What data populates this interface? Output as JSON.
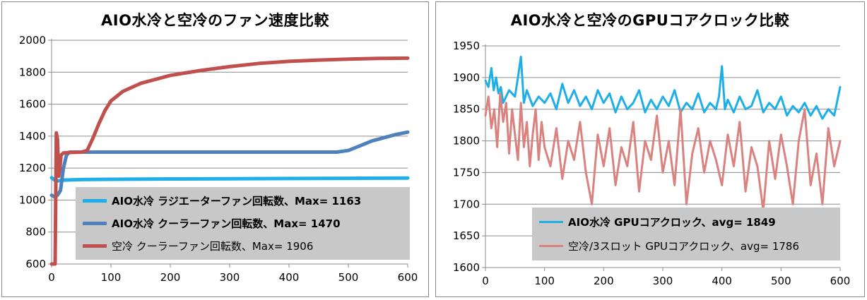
{
  "chart_data": [
    {
      "type": "line",
      "title": "AIO水冷と空冷のファン速度比較",
      "xlabel": "",
      "ylabel": "",
      "xlim": [
        0,
        600
      ],
      "ylim": [
        600,
        2000
      ],
      "x_ticks": [
        "0",
        "100",
        "200",
        "300",
        "400",
        "500",
        "600"
      ],
      "y_ticks": [
        "600",
        "800",
        "1000",
        "1200",
        "1400",
        "1600",
        "1800",
        "2000"
      ],
      "grid": "horizontal",
      "legend_position": "bottom-right",
      "series": [
        {
          "name": "AIO水冷 ラジエーターファン回転数、Max= 1163",
          "color": "#1eaee8",
          "bold": true,
          "x": [
            0,
            5,
            10,
            20,
            50,
            100,
            200,
            300,
            400,
            500,
            600
          ],
          "values": [
            1140,
            1125,
            1120,
            1125,
            1128,
            1130,
            1132,
            1133,
            1135,
            1136,
            1138
          ]
        },
        {
          "name": "AIO水冷 クーラーファン回転数、Max= 1470",
          "color": "#4f81bd",
          "bold": true,
          "x": [
            0,
            5,
            10,
            15,
            20,
            25,
            30,
            60,
            100,
            200,
            300,
            400,
            480,
            500,
            520,
            540,
            560,
            580,
            600
          ],
          "values": [
            1030,
            1020,
            1030,
            1060,
            1200,
            1280,
            1300,
            1300,
            1300,
            1300,
            1300,
            1300,
            1300,
            1310,
            1340,
            1370,
            1390,
            1410,
            1425
          ]
        },
        {
          "name": "空冷 クーラーファン回転数、Max= 1906",
          "color": "#c0504d",
          "bold": false,
          "x": [
            0,
            6,
            8,
            10,
            12,
            14,
            16,
            20,
            30,
            50,
            60,
            70,
            80,
            90,
            100,
            120,
            150,
            200,
            250,
            300,
            350,
            400,
            450,
            500,
            550,
            600
          ],
          "values": [
            600,
            600,
            1420,
            1380,
            1150,
            1200,
            1280,
            1295,
            1298,
            1300,
            1310,
            1390,
            1480,
            1560,
            1620,
            1680,
            1730,
            1780,
            1810,
            1835,
            1855,
            1868,
            1876,
            1882,
            1886,
            1888
          ]
        }
      ]
    },
    {
      "type": "line",
      "title": "AIO水冷と空冷のGPUコアクロック比較",
      "xlabel": "",
      "ylabel": "",
      "xlim": [
        0,
        600
      ],
      "ylim": [
        1600,
        1950
      ],
      "x_ticks": [
        "0",
        "100",
        "200",
        "300",
        "400",
        "500",
        "600"
      ],
      "y_ticks": [
        "1600",
        "1650",
        "1700",
        "1750",
        "1800",
        "1850",
        "1900",
        "1950"
      ],
      "grid": "horizontal",
      "legend_position": "bottom-right",
      "series": [
        {
          "name": "AIO水冷 GPUコアクロック、avg= 1849",
          "color": "#1eaee8",
          "bold": true,
          "x": [
            0,
            5,
            10,
            14,
            18,
            22,
            26,
            30,
            40,
            50,
            55,
            60,
            65,
            70,
            80,
            90,
            100,
            110,
            120,
            130,
            140,
            150,
            160,
            170,
            180,
            190,
            200,
            210,
            220,
            230,
            240,
            250,
            260,
            270,
            280,
            290,
            300,
            310,
            320,
            330,
            340,
            350,
            360,
            370,
            380,
            390,
            395,
            400,
            405,
            410,
            420,
            430,
            440,
            450,
            460,
            470,
            480,
            490,
            500,
            510,
            520,
            530,
            540,
            550,
            560,
            570,
            580,
            590,
            600
          ],
          "values": [
            1895,
            1885,
            1915,
            1880,
            1900,
            1875,
            1885,
            1860,
            1880,
            1870,
            1900,
            1933,
            1860,
            1880,
            1855,
            1870,
            1860,
            1875,
            1850,
            1890,
            1860,
            1880,
            1855,
            1870,
            1850,
            1880,
            1860,
            1875,
            1845,
            1870,
            1850,
            1860,
            1880,
            1845,
            1865,
            1850,
            1870,
            1855,
            1880,
            1845,
            1860,
            1850,
            1875,
            1845,
            1860,
            1850,
            1870,
            1918,
            1850,
            1865,
            1845,
            1870,
            1850,
            1855,
            1880,
            1845,
            1860,
            1850,
            1870,
            1840,
            1855,
            1845,
            1860,
            1840,
            1855,
            1835,
            1850,
            1840,
            1885
          ]
        },
        {
          "name": "空冷/3スロット GPUコアクロック、avg= 1786",
          "color": "#d9827f",
          "bold": false,
          "x": [
            0,
            5,
            10,
            15,
            20,
            25,
            30,
            35,
            40,
            45,
            50,
            55,
            60,
            65,
            70,
            75,
            80,
            85,
            90,
            95,
            100,
            110,
            120,
            130,
            140,
            150,
            160,
            170,
            180,
            190,
            200,
            210,
            220,
            230,
            240,
            250,
            260,
            270,
            280,
            290,
            300,
            310,
            320,
            330,
            340,
            350,
            360,
            370,
            380,
            390,
            400,
            410,
            420,
            430,
            440,
            450,
            460,
            470,
            480,
            490,
            500,
            510,
            520,
            530,
            540,
            550,
            560,
            570,
            580,
            590,
            600
          ],
          "values": [
            1840,
            1870,
            1820,
            1850,
            1790,
            1875,
            1830,
            1860,
            1780,
            1850,
            1810,
            1770,
            1860,
            1790,
            1830,
            1760,
            1810,
            1850,
            1770,
            1830,
            1790,
            1760,
            1820,
            1740,
            1800,
            1770,
            1830,
            1750,
            1700,
            1810,
            1760,
            1820,
            1730,
            1790,
            1760,
            1830,
            1720,
            1800,
            1770,
            1840,
            1750,
            1800,
            1730,
            1850,
            1700,
            1780,
            1820,
            1750,
            1800,
            1770,
            1730,
            1810,
            1760,
            1830,
            1720,
            1790,
            1760,
            1690,
            1800,
            1740,
            1810,
            1760,
            1700,
            1800,
            1850,
            1730,
            1780,
            1700,
            1820,
            1760,
            1800
          ]
        }
      ]
    }
  ]
}
